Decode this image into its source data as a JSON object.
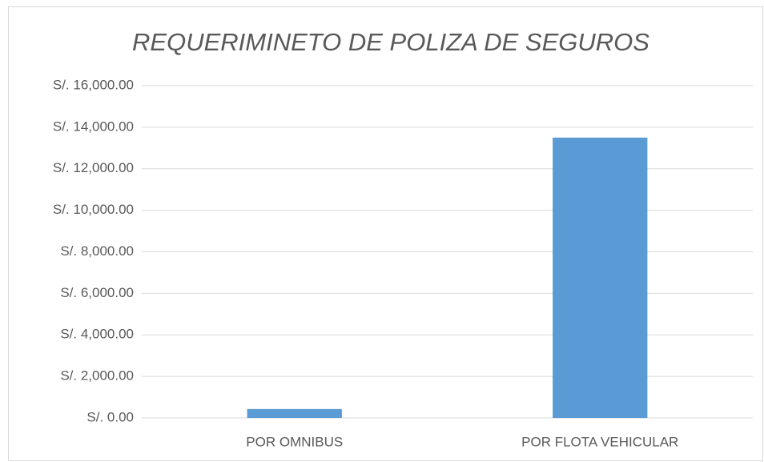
{
  "chart_data": {
    "type": "bar",
    "title": "REQUERIMINETO DE POLIZA DE SEGUROS",
    "categories": [
      "POR OMNIBUS",
      "POR FLOTA VEHICULAR"
    ],
    "values": [
      430,
      13500
    ],
    "color": "#5b9bd5",
    "ylim": [
      0,
      16000
    ],
    "yticks": [
      {
        "value": 0,
        "label": "S/. 0.00"
      },
      {
        "value": 2000,
        "label": "S/. 2,000.00"
      },
      {
        "value": 4000,
        "label": "S/. 4,000.00"
      },
      {
        "value": 6000,
        "label": "S/. 6,000.00"
      },
      {
        "value": 8000,
        "label": "S/. 8,000.00"
      },
      {
        "value": 10000,
        "label": "S/. 10,000.00"
      },
      {
        "value": 12000,
        "label": "S/. 12,000.00"
      },
      {
        "value": 14000,
        "label": "S/. 14,000.00"
      },
      {
        "value": 16000,
        "label": "S/. 16,000.00"
      }
    ],
    "grid": true
  }
}
